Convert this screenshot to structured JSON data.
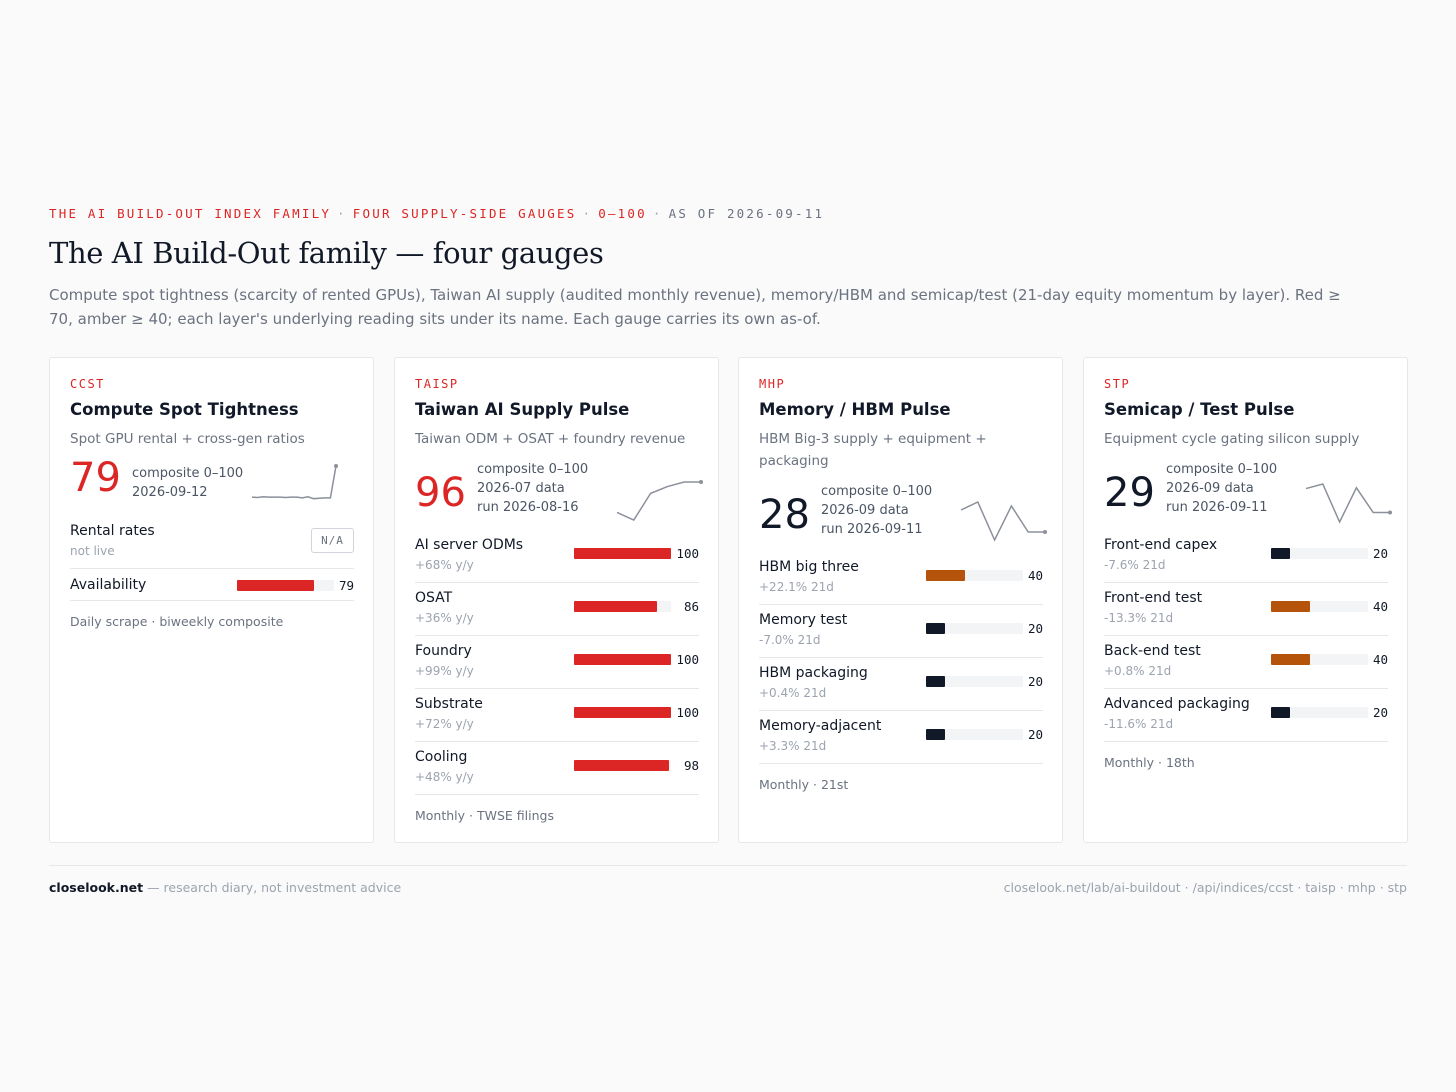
{
  "header": {
    "kicker_parts": [
      "THE AI BUILD-OUT INDEX FAMILY",
      "FOUR SUPPLY-SIDE GAUGES",
      "0–100"
    ],
    "kicker_separator": "·",
    "kicker_asof": "AS OF 2026-09-11",
    "title": "The AI Build-Out family — four gauges",
    "subtitle": "Compute spot tightness (scarcity of rented GPUs), Taiwan AI supply (audited monthly revenue), memory/HBM and semicap/test (21-day equity momentum by layer). Red ≥ 70, amber ≥ 40; each layer's underlying reading sits under its name. Each gauge carries its own as-of."
  },
  "colors": {
    "red": "#dc2626",
    "amber": "#b45309",
    "dark": "#111827",
    "track": "#f3f4f6"
  },
  "cards": [
    {
      "code": "CCST",
      "name": "Compute Spot Tightness",
      "desc": "Spot GPU rental + cross-gen ratios",
      "score": "79",
      "score_color": "red",
      "meta": [
        "composite 0–100",
        "2026-09-12"
      ],
      "spark": [
        0.82,
        0.83,
        0.81,
        0.82,
        0.82,
        0.82,
        0.83,
        0.82,
        0.82,
        0.84,
        0.81,
        0.86,
        0.85,
        0.84,
        0.84,
        0.0
      ],
      "rows": [
        {
          "label": "Rental rates",
          "sub": "not live",
          "na": "N/A"
        },
        {
          "label": "Availability",
          "sub": "",
          "value": 79,
          "display": "79",
          "color": "red"
        }
      ],
      "foot": "Daily scrape · biweekly composite"
    },
    {
      "code": "TAISP",
      "name": "Taiwan AI Supply Pulse",
      "desc": "Taiwan ODM + OSAT + foundry revenue",
      "score": "96",
      "score_color": "red",
      "meta": [
        "composite 0–100",
        "2026-07 data",
        "run 2026-08-16"
      ],
      "spark": [
        0.8,
        1.0,
        0.3,
        0.12,
        0.0,
        0.0
      ],
      "rows": [
        {
          "label": "AI server ODMs",
          "sub": "+68% y/y",
          "value": 100,
          "display": "100",
          "color": "red"
        },
        {
          "label": "OSAT",
          "sub": "+36% y/y",
          "value": 86,
          "display": "86",
          "color": "red"
        },
        {
          "label": "Foundry",
          "sub": "+99% y/y",
          "value": 100,
          "display": "100",
          "color": "red"
        },
        {
          "label": "Substrate",
          "sub": "+72% y/y",
          "value": 100,
          "display": "100",
          "color": "red"
        },
        {
          "label": "Cooling",
          "sub": "+48% y/y",
          "value": 98,
          "display": "98",
          "color": "red"
        }
      ],
      "foot": "Monthly · TWSE filings"
    },
    {
      "code": "MHP",
      "name": "Memory / HBM Pulse",
      "desc": "HBM Big-3 supply + equipment + packaging",
      "score": "28",
      "score_color": "dark",
      "meta": [
        "composite 0–100",
        "2026-09 data",
        "run 2026-09-11"
      ],
      "spark": [
        0.2,
        0.0,
        0.95,
        0.1,
        0.75,
        0.75
      ],
      "rows": [
        {
          "label": "HBM big three",
          "sub": "+22.1% 21d",
          "value": 40,
          "display": "40",
          "color": "amber"
        },
        {
          "label": "Memory test",
          "sub": "-7.0% 21d",
          "value": 20,
          "display": "20",
          "color": "dark"
        },
        {
          "label": "HBM packaging",
          "sub": "+0.4% 21d",
          "value": 20,
          "display": "20",
          "color": "dark"
        },
        {
          "label": "Memory-adjacent",
          "sub": "+3.3% 21d",
          "value": 20,
          "display": "20",
          "color": "dark"
        }
      ],
      "foot": "Monthly · 21st"
    },
    {
      "code": "STP",
      "name": "Semicap / Test Pulse",
      "desc": "Equipment cycle gating silicon supply",
      "score": "29",
      "score_color": "dark",
      "meta": [
        "composite 0–100",
        "2026-09 data",
        "run 2026-09-11"
      ],
      "spark": [
        0.12,
        0.0,
        1.0,
        0.1,
        0.75,
        0.75
      ],
      "rows": [
        {
          "label": "Front-end capex",
          "sub": "-7.6% 21d",
          "value": 20,
          "display": "20",
          "color": "dark"
        },
        {
          "label": "Front-end test",
          "sub": "-13.3% 21d",
          "value": 40,
          "display": "40",
          "color": "amber"
        },
        {
          "label": "Back-end test",
          "sub": "+0.8% 21d",
          "value": 40,
          "display": "40",
          "color": "amber"
        },
        {
          "label": "Advanced packaging",
          "sub": "-11.6% 21d",
          "value": 20,
          "display": "20",
          "color": "dark"
        }
      ],
      "foot": "Monthly · 18th"
    }
  ],
  "footer": {
    "brand": "closelook.net",
    "tagline": "— research diary, not investment advice",
    "links": "closelook.net/lab/ai-buildout · /api/indices/ccst · taisp · mhp · stp"
  }
}
